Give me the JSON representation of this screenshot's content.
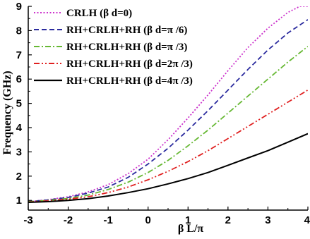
{
  "chart_data": {
    "type": "line",
    "xlabel": "β L/π",
    "ylabel": "Frequency (GHz)",
    "xlim": [
      -3,
      4
    ],
    "ylim": [
      0.6,
      9
    ],
    "x_ticks": [
      "-3",
      "-2",
      "-1",
      "0",
      "1",
      "2",
      "3",
      "4"
    ],
    "y_ticks": [
      "1",
      "2",
      "3",
      "4",
      "5",
      "6",
      "7",
      "8",
      "9"
    ],
    "grid": false,
    "legend_position": "top-left",
    "series": [
      {
        "name": "CRLH (β d=0)",
        "color": "#cc33cc",
        "dash": "dot",
        "x": [
          -3,
          -2.5,
          -2,
          -1.5,
          -1,
          -0.5,
          0,
          0.5,
          1,
          1.5,
          2,
          2.5,
          3,
          3.5,
          3.8,
          4
        ],
        "y": [
          0.95,
          1.03,
          1.15,
          1.35,
          1.65,
          2.1,
          2.7,
          3.5,
          4.4,
          5.35,
          6.35,
          7.3,
          8.1,
          8.75,
          9.0,
          9.0
        ]
      },
      {
        "name": "RH+CRLH+RH (β d=π /6)",
        "color": "#2b2b9e",
        "dash": "dash",
        "x": [
          -3,
          -2.5,
          -2,
          -1.5,
          -1,
          -0.5,
          0,
          0.5,
          1,
          1.5,
          2,
          2.5,
          3,
          3.5,
          4
        ],
        "y": [
          0.95,
          1.02,
          1.12,
          1.3,
          1.55,
          1.95,
          2.5,
          3.15,
          3.9,
          4.7,
          5.55,
          6.4,
          7.2,
          7.9,
          8.45
        ]
      },
      {
        "name": "RH+CRLH+RH (β d=π /3)",
        "color": "#66b833",
        "dash": "dashdot",
        "x": [
          -3,
          -2.5,
          -2,
          -1.5,
          -1,
          -0.5,
          0,
          0.5,
          1,
          1.5,
          2,
          2.5,
          3,
          3.5,
          4
        ],
        "y": [
          0.95,
          1.0,
          1.08,
          1.22,
          1.45,
          1.75,
          2.15,
          2.65,
          3.25,
          3.9,
          4.6,
          5.3,
          6.0,
          6.7,
          7.35
        ]
      },
      {
        "name": "RH+CRLH+RH (β d=2π /3)",
        "color": "#e02020",
        "dash": "dashdotdot",
        "x": [
          -3,
          -2.5,
          -2,
          -1.5,
          -1,
          -0.5,
          0,
          0.5,
          1,
          1.5,
          2,
          2.5,
          3,
          3.5,
          4
        ],
        "y": [
          0.93,
          0.98,
          1.05,
          1.15,
          1.32,
          1.55,
          1.85,
          2.2,
          2.6,
          3.05,
          3.55,
          4.05,
          4.55,
          5.05,
          5.55
        ]
      },
      {
        "name": "RH+CRLH+RH (β d=4π /3)",
        "color": "#000000",
        "dash": "solid",
        "x": [
          -3,
          -2.5,
          -2,
          -1.5,
          -1,
          -0.5,
          0,
          0.5,
          1,
          1.5,
          2,
          2.5,
          3,
          3.5,
          4
        ],
        "y": [
          0.92,
          0.95,
          1.0,
          1.07,
          1.18,
          1.32,
          1.48,
          1.68,
          1.9,
          2.15,
          2.45,
          2.75,
          3.05,
          3.4,
          3.75
        ]
      }
    ]
  }
}
